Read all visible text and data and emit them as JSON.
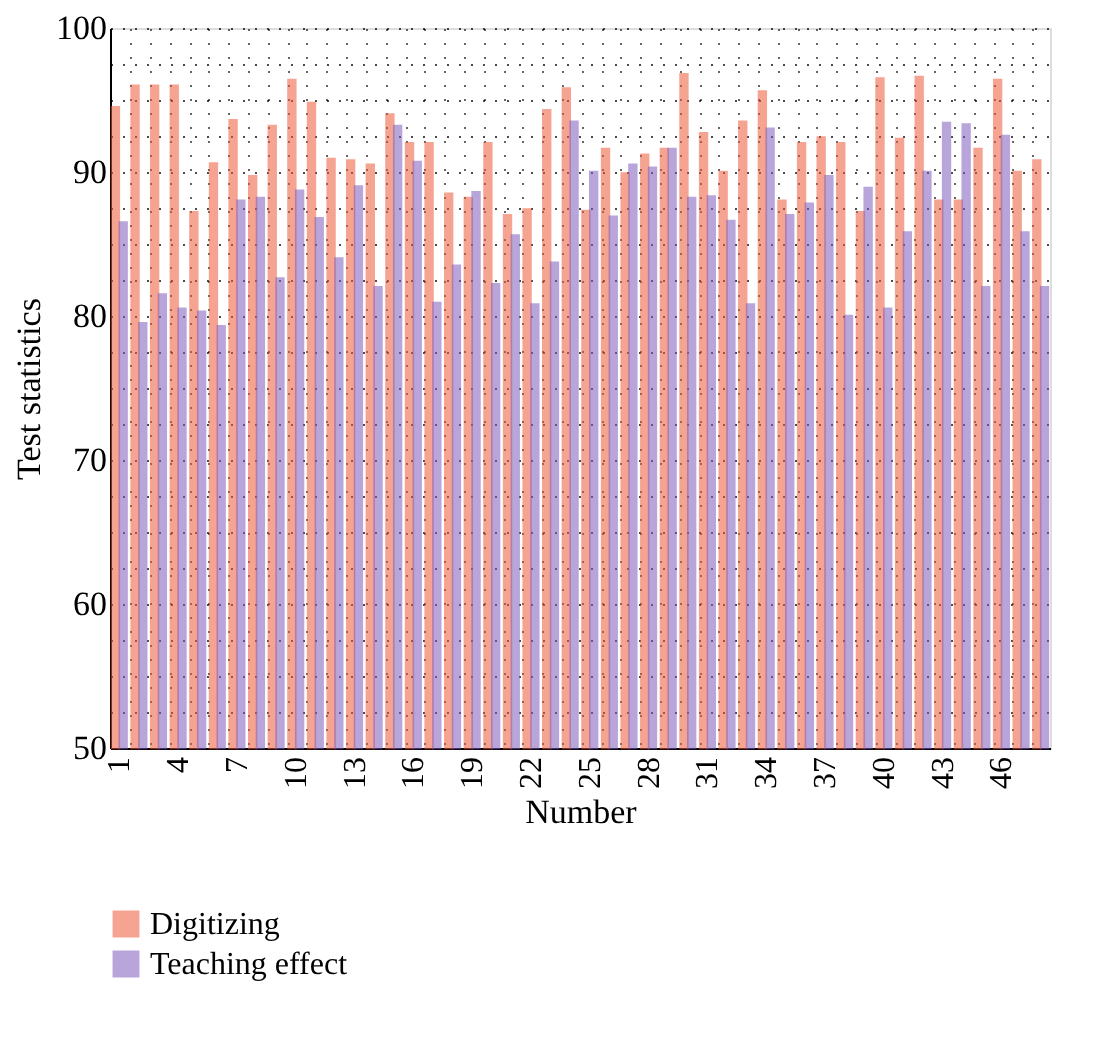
{
  "chart_data": {
    "type": "bar",
    "xlabel": "Number",
    "ylabel": "Test statistics",
    "categories": [
      "1",
      null,
      null,
      "4",
      null,
      null,
      "7",
      null,
      null,
      "10",
      null,
      null,
      "13",
      null,
      null,
      "16",
      null,
      null,
      "19",
      null,
      null,
      "22",
      null,
      null,
      "25",
      null,
      null,
      "28",
      null,
      null,
      "31",
      null,
      null,
      "34",
      null,
      null,
      "37",
      null,
      null,
      "40",
      null,
      null,
      "43",
      null,
      null,
      "46",
      null,
      null
    ],
    "series": [
      {
        "name": "Digitizing",
        "color": "#ee5a3a",
        "values": [
          94.5,
          96,
          96,
          96,
          87.2,
          90.6,
          93.6,
          89.7,
          93.2,
          96.4,
          94.8,
          90.9,
          90.8,
          90.5,
          94,
          92,
          92,
          88.5,
          88.2,
          92,
          87,
          87.4,
          94.3,
          95.8,
          87.3,
          91.6,
          89.9,
          91.2,
          91.6,
          96.8,
          92.7,
          90,
          93.5,
          95.6,
          88,
          92,
          92.4,
          92,
          87.2,
          96.5,
          92.3,
          96.6,
          88,
          88,
          91.6,
          96.4,
          90,
          90.8
        ]
      },
      {
        "name": "Teaching effect",
        "color": "#7f5cbd",
        "values": [
          86.5,
          79.5,
          81.5,
          80.5,
          80.3,
          79.3,
          88,
          88.2,
          82.6,
          88.7,
          86.8,
          84,
          89,
          82,
          93.2,
          90.7,
          80.9,
          83.5,
          88.6,
          82.2,
          85.6,
          80.8,
          83.7,
          93.5,
          90,
          86.9,
          90.5,
          90.3,
          91.6,
          88.2,
          88.3,
          86.6,
          80.8,
          93,
          87,
          87.8,
          89.7,
          80,
          88.9,
          80.5,
          85.8,
          90,
          93.4,
          93.3,
          82,
          92.5,
          85.8,
          82
        ]
      }
    ],
    "ylim": [
      50,
      100
    ],
    "yticks": [
      50,
      {
        "value": 52.5,
        "label": null
      },
      {
        "value": 55,
        "label": null
      },
      {
        "value": 57.5,
        "label": null
      },
      60,
      {
        "value": 62.5,
        "label": null
      },
      {
        "value": 65,
        "label": null
      },
      {
        "value": 67.5,
        "label": null
      },
      70,
      {
        "value": 72.5,
        "label": null
      },
      {
        "value": 75,
        "label": null
      },
      {
        "value": 77.5,
        "label": null
      },
      80,
      {
        "value": 82.5,
        "label": null
      },
      {
        "value": 85,
        "label": null
      },
      {
        "value": 87.5,
        "label": null
      },
      90,
      {
        "value": 92.5,
        "label": null
      },
      {
        "value": 95,
        "label": null
      },
      {
        "value": 97.5,
        "label": null
      },
      100
    ],
    "grid": true,
    "legend": "bottom left"
  }
}
